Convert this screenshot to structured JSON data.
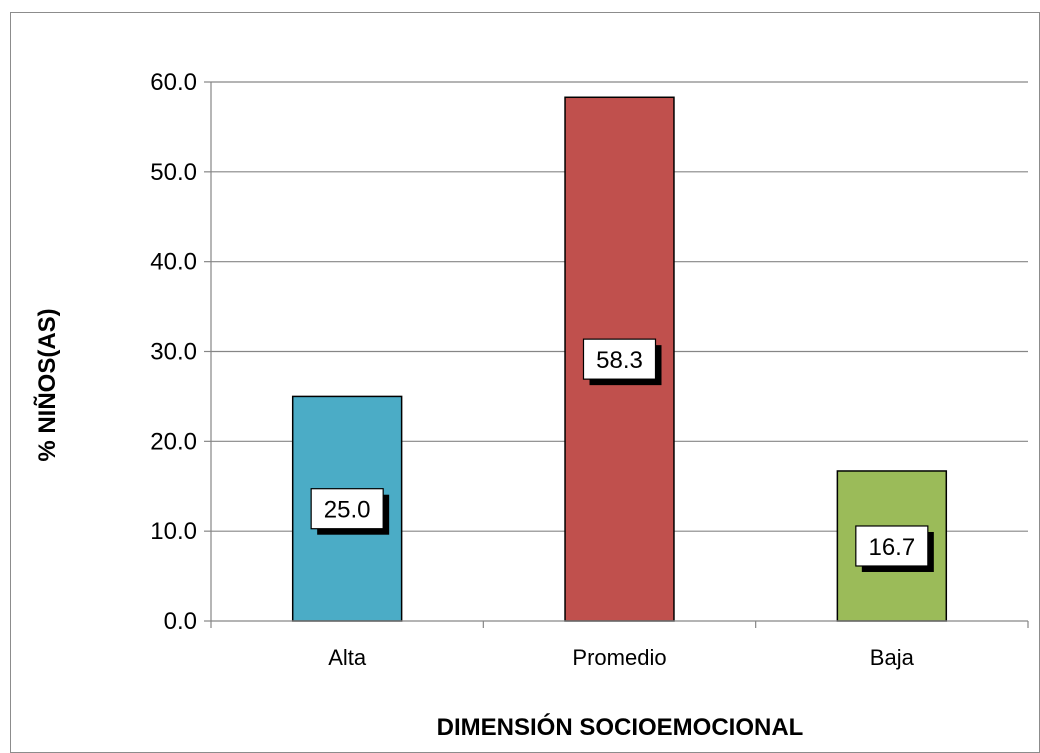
{
  "chart_data": {
    "type": "bar",
    "title": "",
    "xlabel": "DIMENSIÓN SOCIOEMOCIONAL",
    "ylabel": "% NIÑOS(AS)",
    "categories": [
      "Alta",
      "Promedio",
      "Baja"
    ],
    "values": [
      25.0,
      58.3,
      16.7
    ],
    "data_labels": [
      "25.0",
      "58.3",
      "16.7"
    ],
    "bar_colors": [
      "#4BACC6",
      "#C0504D",
      "#9BBB59"
    ],
    "ylim": [
      0,
      60
    ],
    "yticks": [
      0,
      10,
      20,
      30,
      40,
      50,
      60
    ],
    "ytick_labels": [
      "0.0",
      "10.0",
      "20.0",
      "30.0",
      "40.0",
      "50.0",
      "60.0"
    ],
    "grid": true,
    "legend": "none"
  }
}
